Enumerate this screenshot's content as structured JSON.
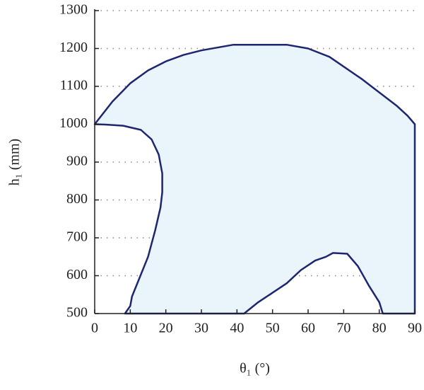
{
  "chart_data": {
    "type": "area",
    "xlabel": "θ₁ (°)",
    "ylabel": "h₁ (mm)",
    "xlim": [
      0,
      90
    ],
    "xticks": [
      0,
      10,
      20,
      30,
      40,
      50,
      60,
      70,
      80,
      90
    ],
    "ylim": [
      500,
      1300
    ],
    "yticks": [
      500,
      600,
      700,
      800,
      900,
      1000,
      1100,
      1200,
      1300
    ],
    "grid": true,
    "color": "#1d2670",
    "fill": "#eaf5fb",
    "x": [
      0,
      5,
      10,
      15,
      20,
      25,
      30,
      39,
      54,
      60,
      66,
      75,
      85,
      88,
      90,
      90,
      81,
      80,
      77,
      74,
      71,
      67,
      65,
      62,
      58,
      54,
      50,
      46,
      42,
      8.5,
      10,
      10.5,
      15,
      17,
      18.5,
      19,
      19,
      18,
      16,
      13,
      8,
      3,
      0
    ],
    "y": [
      1000,
      1060,
      1108,
      1142,
      1166,
      1183,
      1195,
      1210,
      1210,
      1200,
      1178,
      1120,
      1048,
      1022,
      1000,
      500,
      500,
      530,
      575,
      625,
      658,
      660,
      650,
      640,
      615,
      580,
      555,
      530,
      500,
      500,
      520,
      545,
      650,
      720,
      780,
      820,
      870,
      920,
      960,
      985,
      996,
      999,
      1000
    ]
  }
}
